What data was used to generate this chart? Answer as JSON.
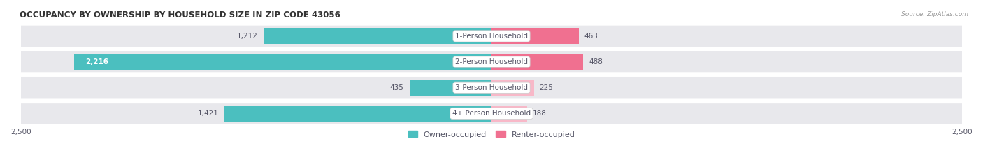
{
  "title": "OCCUPANCY BY OWNERSHIP BY HOUSEHOLD SIZE IN ZIP CODE 43056",
  "source": "Source: ZipAtlas.com",
  "categories": [
    "1-Person Household",
    "2-Person Household",
    "3-Person Household",
    "4+ Person Household"
  ],
  "owner_values": [
    1212,
    2216,
    435,
    1421
  ],
  "renter_values": [
    463,
    488,
    225,
    188
  ],
  "max_axis": 2500,
  "owner_color": "#4BBFBF",
  "renter_color": "#F07090",
  "renter_color_light": "#F8B8C8",
  "row_bg_color": "#E8E8EC",
  "row_alt_bg": "#F5F5F7",
  "title_fontsize": 8.5,
  "label_fontsize": 7.5,
  "value_fontsize": 7.5,
  "tick_fontsize": 7.5,
  "legend_fontsize": 8,
  "source_fontsize": 6.5,
  "background_color": "#FFFFFF",
  "text_color": "#555566"
}
